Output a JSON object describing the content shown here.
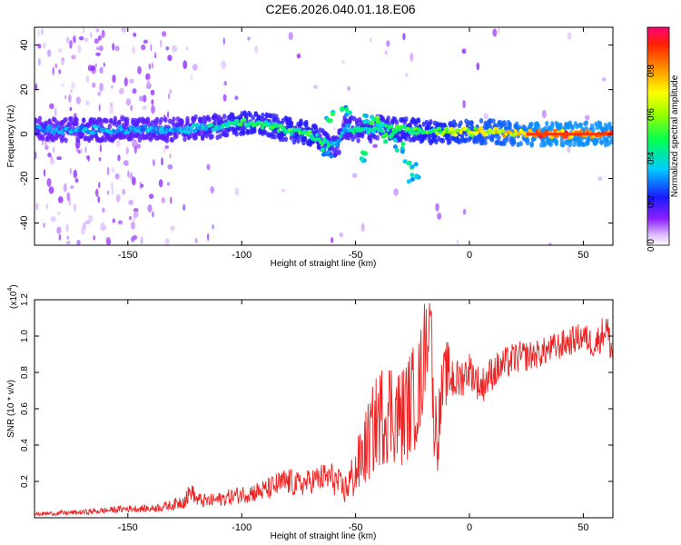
{
  "title": "C2E6.2026.040.01.18.E06",
  "chart_data": [
    {
      "type": "heatmap",
      "xlabel": "Height of straight line (km)",
      "ylabel": "Frequency (Hz)",
      "xlim": [
        -191,
        63
      ],
      "ylim": [
        -50,
        48
      ],
      "xticks": [
        -150,
        -100,
        -50,
        0,
        50
      ],
      "yticks": [
        -40,
        -20,
        0,
        20,
        40
      ],
      "colorbar": {
        "label": "Normalized spectral amplitude",
        "range": [
          0,
          1
        ],
        "ticks": [
          "0.0",
          "0.2",
          "0.4",
          "0.6",
          "0.8"
        ]
      },
      "ridge": {
        "x": [
          -191,
          -170,
          -150,
          -130,
          -115,
          -105,
          -100,
          -90,
          -80,
          -70,
          -63,
          -58,
          -55,
          -50,
          -45,
          -40,
          -30,
          -25,
          -20,
          -10,
          0,
          10,
          20,
          30,
          40,
          50,
          63
        ],
        "y": [
          2,
          2,
          2,
          2,
          3,
          4,
          5,
          4,
          2,
          0,
          -4,
          -6,
          3,
          2,
          1,
          3,
          2,
          2,
          1,
          1,
          1,
          1,
          0,
          0,
          0,
          0,
          0
        ],
        "amplitude": [
          0.3,
          0.35,
          0.35,
          0.35,
          0.4,
          0.45,
          0.5,
          0.5,
          0.5,
          0.55,
          0.45,
          0.4,
          0.4,
          0.45,
          0.4,
          0.45,
          0.5,
          0.5,
          0.55,
          0.6,
          0.7,
          0.75,
          0.8,
          0.9,
          0.9,
          0.9,
          0.9
        ]
      }
    },
    {
      "type": "line",
      "xlabel": "Height of straight line (km)",
      "ylabel": "SNR (10 * v/v)",
      "exponent_label": "(x10",
      "exponent_power": "4",
      "exponent_close": ")",
      "xlim": [
        -191,
        63
      ],
      "ylim": [
        0,
        1.2
      ],
      "xticks": [
        -150,
        -100,
        -50,
        0,
        50
      ],
      "yticks": [
        0.2,
        0.4,
        0.6,
        0.8,
        1.0,
        1.2
      ],
      "ytick_labels": [
        "0.2",
        "0.4",
        "0.6",
        "0.8",
        "1.0",
        "1.2"
      ],
      "series": [
        {
          "name": "SNR",
          "color": "#ee2222",
          "x": [
            -191,
            -170,
            -150,
            -140,
            -130,
            -125,
            -122,
            -120,
            -115,
            -110,
            -100,
            -90,
            -80,
            -75,
            -70,
            -65,
            -60,
            -55,
            -50,
            -45,
            -40,
            -35,
            -30,
            -25,
            -22,
            -20,
            -18,
            -17,
            -16,
            -14,
            -12,
            -10,
            -5,
            0,
            5,
            10,
            20,
            30,
            40,
            50,
            55,
            60,
            63
          ],
          "y": [
            0.02,
            0.03,
            0.05,
            0.05,
            0.07,
            0.1,
            0.15,
            0.1,
            0.09,
            0.1,
            0.13,
            0.15,
            0.2,
            0.18,
            0.2,
            0.22,
            0.22,
            0.15,
            0.25,
            0.4,
            0.55,
            0.6,
            0.55,
            0.65,
            0.7,
            0.9,
            1.05,
            1.2,
            0.6,
            0.45,
            0.7,
            0.8,
            0.75,
            0.82,
            0.72,
            0.8,
            0.88,
            0.9,
            0.95,
            1.0,
            0.95,
            1.05,
            0.9
          ],
          "noise": [
            0.01,
            0.015,
            0.02,
            0.02,
            0.03,
            0.05,
            0.05,
            0.04,
            0.04,
            0.04,
            0.05,
            0.06,
            0.08,
            0.07,
            0.07,
            0.08,
            0.09,
            0.08,
            0.15,
            0.22,
            0.28,
            0.3,
            0.28,
            0.3,
            0.3,
            0.3,
            0.2,
            0.1,
            0.25,
            0.2,
            0.18,
            0.18,
            0.12,
            0.1,
            0.1,
            0.1,
            0.09,
            0.08,
            0.08,
            0.08,
            0.08,
            0.1,
            0.1
          ]
        }
      ]
    }
  ]
}
